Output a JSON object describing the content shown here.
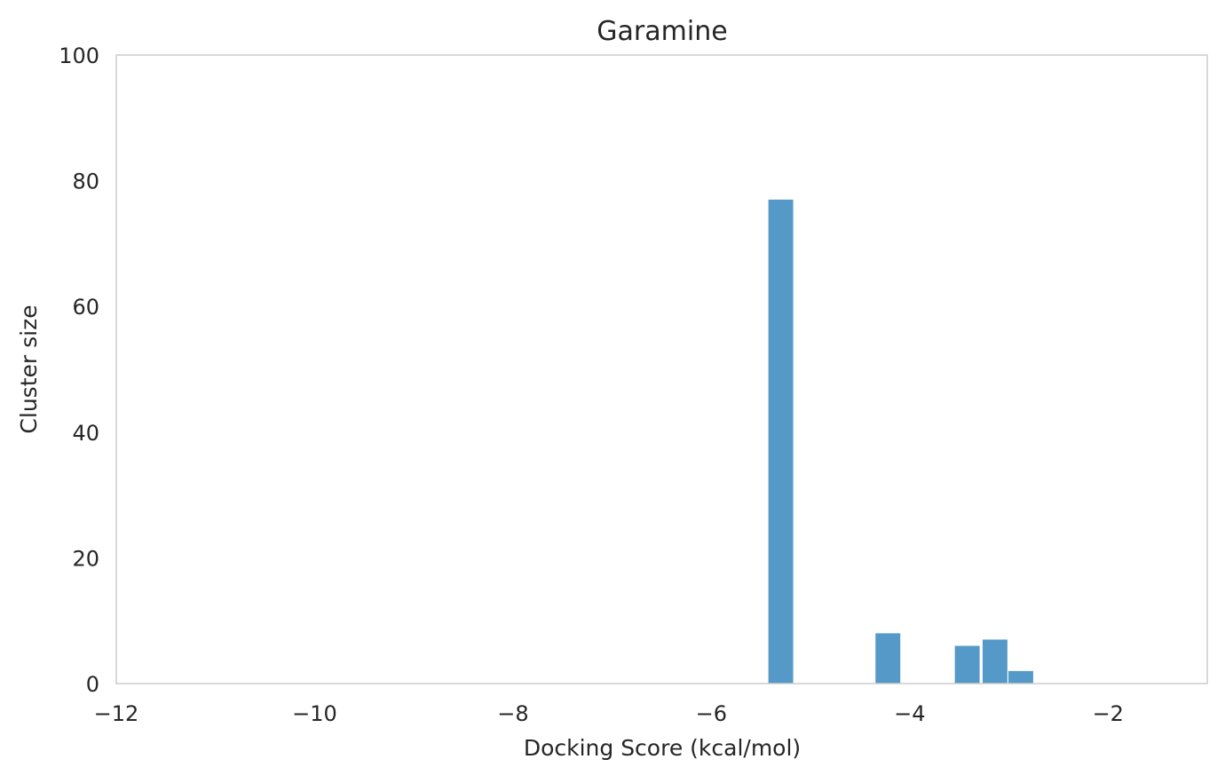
{
  "chart_data": {
    "type": "bar",
    "title": "Garamine",
    "xlabel": "Docking Score (kcal/mol)",
    "ylabel": "Cluster size",
    "xlim": [
      -12,
      -1
    ],
    "ylim": [
      0,
      100
    ],
    "xticks": [
      -12,
      -10,
      -8,
      -6,
      -4,
      -2
    ],
    "xtick_labels": [
      "−12",
      "−10",
      "−8",
      "−6",
      "−4",
      "−2"
    ],
    "yticks": [
      0,
      20,
      40,
      60,
      80,
      100
    ],
    "ytick_labels": [
      "0",
      "20",
      "40",
      "60",
      "80",
      "100"
    ],
    "grid": false,
    "bar_color": "#5499c7",
    "bar_width": 0.25,
    "series": [
      {
        "x": [
          -5.3,
          -4.22,
          -3.42,
          -3.14,
          -2.88
        ],
        "values": [
          77,
          8,
          6,
          7,
          2
        ]
      }
    ]
  }
}
